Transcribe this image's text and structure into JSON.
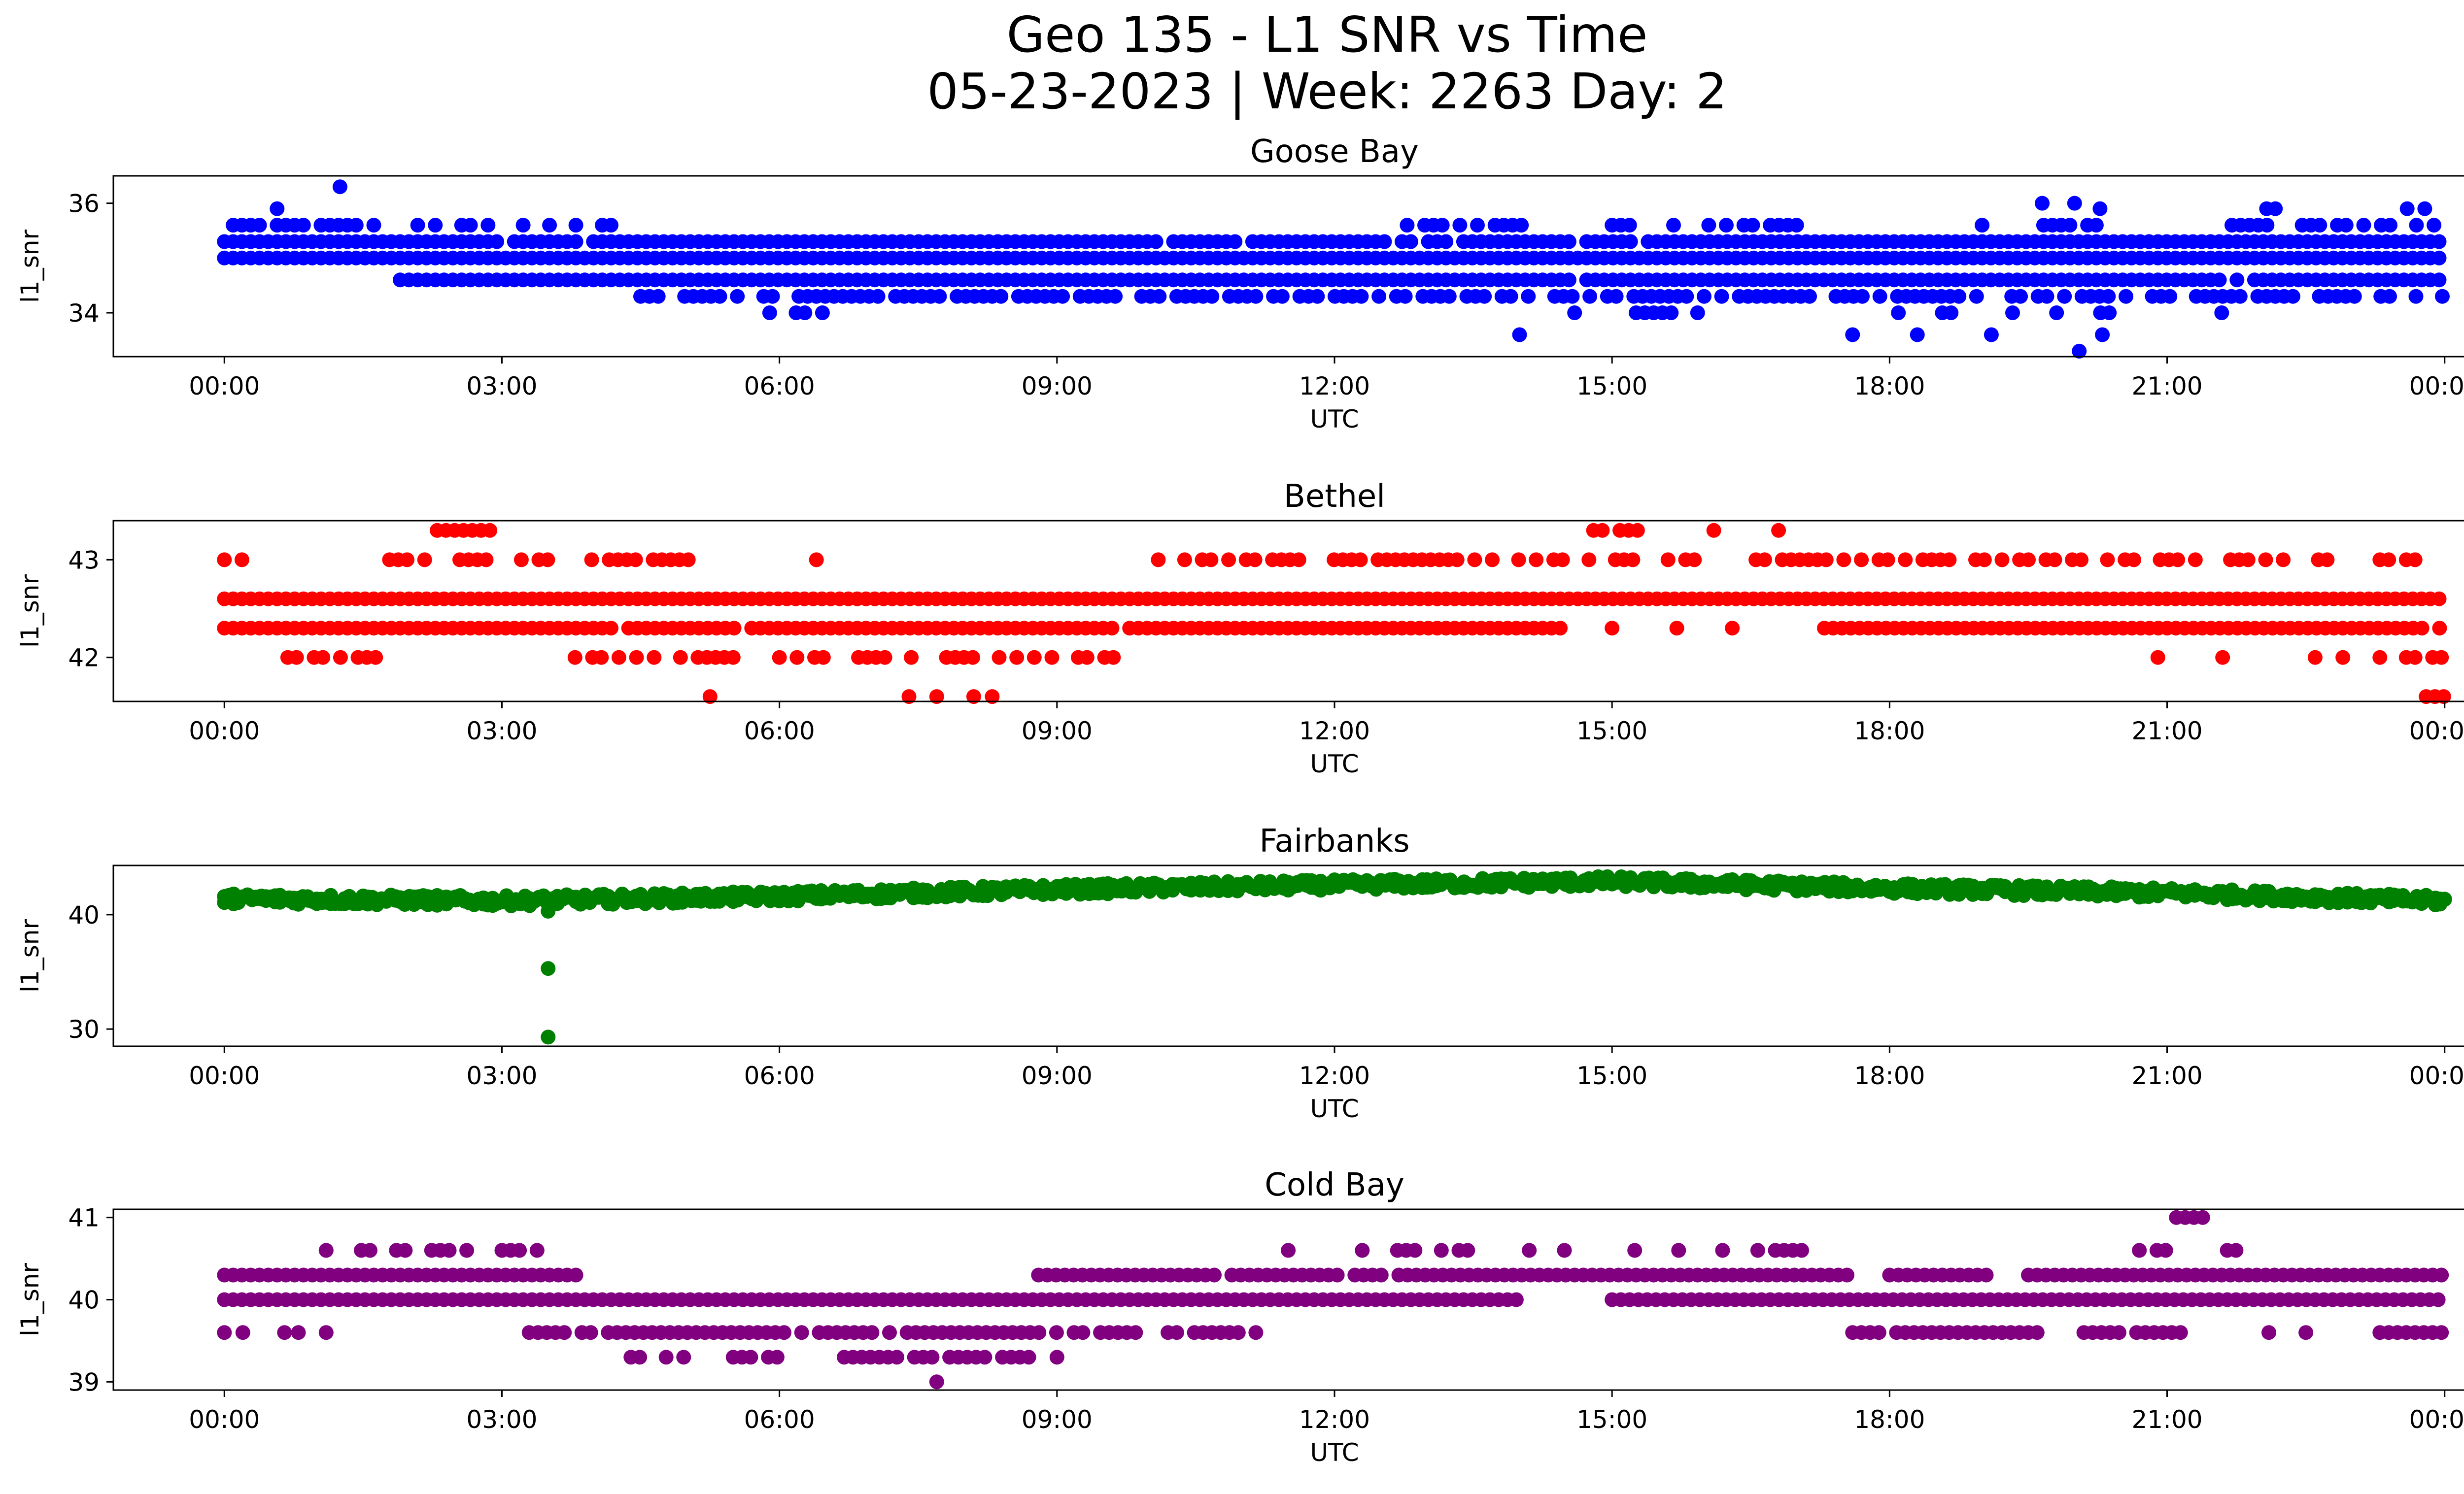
{
  "figure": {
    "title_line1": "Geo 135 - L1 SNR vs Time",
    "title_line2": "05-23-2023 | Week: 2263 Day: 2"
  },
  "chart_data": [
    {
      "type": "scatter",
      "title": "Goose Bay",
      "xlabel": "UTC",
      "ylabel": "l1_snr",
      "color": "#0000ff",
      "x_ticks": [
        "00:00",
        "03:00",
        "06:00",
        "09:00",
        "12:00",
        "15:00",
        "18:00",
        "21:00",
        "00:00"
      ],
      "y_ticks": [
        34,
        36
      ],
      "xlim_hours": [
        -1.2,
        25.2
      ],
      "ylim": [
        33.2,
        36.5
      ],
      "levels": [
        {
          "y": 35.9,
          "density": 0.18,
          "segments": [
            [
              0,
              0.8
            ],
            [
              0.9,
              1.4
            ],
            [
              19.8,
              20.8
            ],
            [
              21.6,
              24
            ]
          ]
        },
        {
          "y": 35.6,
          "density": 0.5,
          "segments": [
            [
              0,
              4.4
            ],
            [
              12.5,
              14.6
            ],
            [
              15,
              17
            ],
            [
              19,
              20.4
            ],
            [
              21.7,
              24
            ]
          ]
        },
        {
          "y": 35.3,
          "density": 0.97,
          "segments": [
            [
              0,
              24
            ]
          ]
        },
        {
          "y": 35.0,
          "density": 1.0,
          "segments": [
            [
              0,
              24
            ]
          ]
        },
        {
          "y": 34.6,
          "density": 0.97,
          "segments": [
            [
              1.9,
              24
            ]
          ]
        },
        {
          "y": 34.3,
          "density": 0.7,
          "segments": [
            [
              4.5,
              24
            ]
          ]
        },
        {
          "y": 34.0,
          "density": 0.25,
          "segments": [
            [
              5.8,
              6.6
            ],
            [
              11.4,
              11.6
            ],
            [
              14.5,
              16
            ],
            [
              18,
              20.5
            ],
            [
              21.4,
              21.7
            ]
          ]
        }
      ],
      "outliers": [
        {
          "t": 1.25,
          "y": 36.3
        },
        {
          "t": 14.0,
          "y": 33.6
        },
        {
          "t": 17.6,
          "y": 33.6
        },
        {
          "t": 18.3,
          "y": 33.6
        },
        {
          "t": 19.1,
          "y": 33.6
        },
        {
          "t": 20.3,
          "y": 33.6
        },
        {
          "t": 20.05,
          "y": 33.3
        },
        {
          "t": 19.65,
          "y": 36.0
        },
        {
          "t": 20.0,
          "y": 36.0
        }
      ]
    },
    {
      "type": "scatter",
      "title": "Bethel",
      "xlabel": "UTC",
      "ylabel": "l1_snr",
      "color": "#ff0000",
      "x_ticks": [
        "00:00",
        "03:00",
        "06:00",
        "09:00",
        "12:00",
        "15:00",
        "18:00",
        "21:00",
        "00:00"
      ],
      "y_ticks": [
        42,
        43
      ],
      "xlim_hours": [
        -1.2,
        25.2
      ],
      "ylim": [
        41.55,
        43.4
      ],
      "levels": [
        {
          "y": 43.3,
          "density": 0.9,
          "segments": [
            [
              2.3,
              2.9
            ],
            [
              14.8,
              15.3
            ]
          ]
        },
        {
          "y": 43.0,
          "density": 0.55,
          "segments": [
            [
              0,
              0.3
            ],
            [
              1.5,
              5.2
            ],
            [
              10,
              24
            ]
          ]
        },
        {
          "y": 42.6,
          "density": 1.0,
          "segments": [
            [
              0,
              24
            ]
          ]
        },
        {
          "y": 42.3,
          "density": 0.97,
          "segments": [
            [
              0,
              14.5
            ],
            [
              17.2,
              24
            ]
          ]
        },
        {
          "y": 42.0,
          "density": 0.5,
          "segments": [
            [
              0.4,
              1.7
            ],
            [
              3.6,
              5.7
            ],
            [
              6,
              9.7
            ],
            [
              23.3,
              24
            ]
          ]
        },
        {
          "y": 41.6,
          "density": 0.9,
          "segments": [
            [
              23.8,
              24
            ]
          ]
        }
      ],
      "outliers": [
        {
          "t": 5.25,
          "y": 41.6
        },
        {
          "t": 7.4,
          "y": 41.6
        },
        {
          "t": 7.7,
          "y": 41.6
        },
        {
          "t": 8.1,
          "y": 41.6
        },
        {
          "t": 8.3,
          "y": 41.6
        },
        {
          "t": 6.4,
          "y": 43.0
        },
        {
          "t": 16.1,
          "y": 43.3
        },
        {
          "t": 16.8,
          "y": 43.3
        },
        {
          "t": 15.0,
          "y": 42.3
        },
        {
          "t": 15.7,
          "y": 42.3
        },
        {
          "t": 16.3,
          "y": 42.3
        },
        {
          "t": 20.9,
          "y": 42.0
        },
        {
          "t": 21.6,
          "y": 42.0
        },
        {
          "t": 22.6,
          "y": 42.0
        },
        {
          "t": 22.9,
          "y": 42.0
        }
      ]
    },
    {
      "type": "scatter",
      "title": "Fairbanks",
      "xlabel": "UTC",
      "ylabel": "l1_snr",
      "color": "#008000",
      "x_ticks": [
        "00:00",
        "03:00",
        "06:00",
        "09:00",
        "12:00",
        "15:00",
        "18:00",
        "21:00",
        "00:00"
      ],
      "y_ticks": [
        30,
        40
      ],
      "xlim_hours": [
        -1.2,
        25.2
      ],
      "ylim": [
        28.5,
        44.3
      ],
      "trend": [
        {
          "t": 0,
          "y": 41.4
        },
        {
          "t": 3,
          "y": 41.2
        },
        {
          "t": 6,
          "y": 41.6
        },
        {
          "t": 9,
          "y": 42.2
        },
        {
          "t": 12,
          "y": 42.6
        },
        {
          "t": 15,
          "y": 42.9
        },
        {
          "t": 18,
          "y": 42.3
        },
        {
          "t": 21,
          "y": 41.9
        },
        {
          "t": 24,
          "y": 41.2
        }
      ],
      "outliers": [
        {
          "t": 3.5,
          "y": 40.3
        },
        {
          "t": 3.5,
          "y": 35.3
        },
        {
          "t": 3.5,
          "y": 29.3
        }
      ]
    },
    {
      "type": "scatter",
      "title": "Cold Bay",
      "xlabel": "UTC",
      "ylabel": "l1_snr",
      "color": "#800080",
      "x_ticks": [
        "00:00",
        "03:00",
        "06:00",
        "09:00",
        "12:00",
        "15:00",
        "18:00",
        "21:00",
        "00:00"
      ],
      "y_ticks": [
        39,
        40,
        41
      ],
      "xlim_hours": [
        -1.2,
        25.2
      ],
      "ylim": [
        38.9,
        41.1
      ],
      "levels": [
        {
          "y": 41.0,
          "density": 0.9,
          "segments": [
            [
              21.1,
              21.4
            ]
          ]
        },
        {
          "y": 40.6,
          "density": 0.4,
          "segments": [
            [
              1.1,
              3.4
            ],
            [
              12.3,
              17.1
            ],
            [
              20.7,
              22
            ]
          ]
        },
        {
          "y": 40.3,
          "density": 0.97,
          "segments": [
            [
              0,
              3.8
            ],
            [
              8.8,
              17.6
            ],
            [
              18,
              19.1
            ],
            [
              19.5,
              24
            ]
          ]
        },
        {
          "y": 40.0,
          "density": 1.0,
          "segments": [
            [
              0,
              14
            ],
            [
              15,
              24
            ]
          ]
        },
        {
          "y": 39.6,
          "density": 0.9,
          "segments": [
            [
              3.2,
              9.9
            ],
            [
              10.2,
              11.2
            ],
            [
              17.6,
              19.6
            ],
            [
              20.1,
              21.4
            ],
            [
              23.3,
              24
            ]
          ]
        },
        {
          "y": 39.3,
          "density": 0.6,
          "segments": [
            [
              4.3,
              5
            ]
          ]
        },
        {
          "y": 39.3,
          "density": 0.8,
          "segments": [
            [
              5.5,
              6.3
            ],
            [
              6.7,
              8.8
            ]
          ]
        }
      ],
      "outliers": [
        {
          "t": 0,
          "y": 39.6
        },
        {
          "t": 0.2,
          "y": 39.6
        },
        {
          "t": 0.65,
          "y": 39.6
        },
        {
          "t": 0.8,
          "y": 39.6
        },
        {
          "t": 1.1,
          "y": 39.6
        },
        {
          "t": 7.7,
          "y": 39.0
        },
        {
          "t": 9.0,
          "y": 39.3
        },
        {
          "t": 11.5,
          "y": 40.6
        },
        {
          "t": 22.1,
          "y": 39.6
        },
        {
          "t": 22.5,
          "y": 39.6
        }
      ]
    }
  ]
}
